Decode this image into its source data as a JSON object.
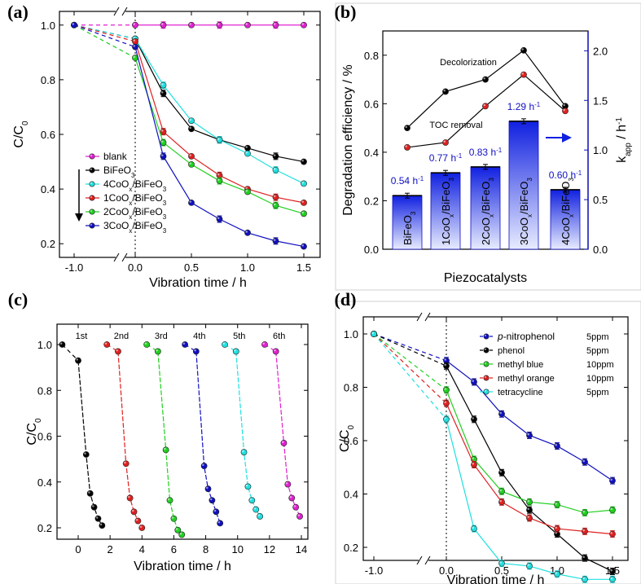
{
  "chart_data": [
    {
      "panel": "(a)",
      "type": "line",
      "xlabel": "Vibration time / h",
      "ylabel": "C/C0",
      "xlim": [
        -1.0,
        1.5
      ],
      "ylim": [
        0.15,
        1.05
      ],
      "xticks": [
        "-1.0",
        "0.0",
        "0.5",
        "1.0",
        "1.5"
      ],
      "yticks": [
        "0.2",
        "0.4",
        "0.6",
        "0.8",
        "1.0"
      ],
      "x": [
        -1.0,
        0.0,
        0.25,
        0.5,
        0.75,
        1.0,
        1.25,
        1.5
      ],
      "series": [
        {
          "name": "blank",
          "color": "#e020d0",
          "values": [
            1.0,
            1.0,
            1.0,
            1.0,
            1.0,
            1.0,
            1.0,
            1.0
          ]
        },
        {
          "name": "BiFeO3",
          "color": "#000000",
          "values": [
            1.0,
            0.95,
            0.75,
            0.62,
            0.58,
            0.55,
            0.52,
            0.5
          ]
        },
        {
          "name": "4CoOx/BiFeO3",
          "color": "#20e0e0",
          "values": [
            1.0,
            0.95,
            0.78,
            0.65,
            0.58,
            0.53,
            0.47,
            0.42
          ]
        },
        {
          "name": "1CoOx/BiFeO3",
          "color": "#e02020",
          "values": [
            1.0,
            0.94,
            0.61,
            0.52,
            0.45,
            0.4,
            0.37,
            0.35
          ]
        },
        {
          "name": "2CoOx/BiFeO3",
          "color": "#20d020",
          "values": [
            1.0,
            0.88,
            0.57,
            0.49,
            0.43,
            0.39,
            0.34,
            0.31
          ]
        },
        {
          "name": "3CoOx/BiFeO3",
          "color": "#1010c0",
          "values": [
            1.0,
            0.92,
            0.52,
            0.35,
            0.29,
            0.24,
            0.21,
            0.19
          ]
        }
      ]
    },
    {
      "panel": "(b)",
      "type": "bar",
      "xlabel": "Piezocatalysts",
      "ylabel": "Degradation efficiency / %",
      "ylabel_right": "k_app / h^-1",
      "categories": [
        "BiFeO3",
        "1CoOx/BiFeO3",
        "2CoOx/BiFeO3",
        "3CoOx/BiFeO3",
        "4CoOx/BiFeO3"
      ],
      "ylim": [
        0.0,
        0.9
      ],
      "yticks": [
        "0.0",
        "0.2",
        "0.4",
        "0.6",
        "0.8"
      ],
      "ylim_right": [
        0.0,
        2.2
      ],
      "yticks_right": [
        "0.0",
        "0.5",
        "1.0",
        "1.5",
        "2.0"
      ],
      "bar_values": [
        0.54,
        0.77,
        0.83,
        1.29,
        0.6
      ],
      "bar_labels": [
        "0.54 h-1",
        "0.77 h-1",
        "0.83 h-1",
        "1.29 h-1",
        "0.60 h-1"
      ],
      "lines": [
        {
          "name": "Decolorization",
          "color": "#000000",
          "values": [
            0.5,
            0.65,
            0.7,
            0.82,
            0.59
          ]
        },
        {
          "name": "TOC removal",
          "color": "#e02020",
          "values": [
            0.42,
            0.44,
            0.59,
            0.72,
            0.57
          ]
        }
      ]
    },
    {
      "panel": "(c)",
      "type": "line",
      "xlabel": "Vibration time / h",
      "ylabel": "C/C0",
      "xlim": [
        -1,
        14
      ],
      "ylim": [
        0.12,
        1.05
      ],
      "xticks": [
        "0",
        "2",
        "4",
        "6",
        "8",
        "10",
        "12",
        "14"
      ],
      "yticks": [
        "0.2",
        "0.4",
        "0.6",
        "0.8",
        "1.0"
      ],
      "series": [
        {
          "name": "1st",
          "color": "#000000",
          "x": [
            -1.0,
            0.0,
            0.5,
            0.75,
            1.0,
            1.25,
            1.5
          ],
          "values": [
            1.0,
            0.93,
            0.52,
            0.35,
            0.29,
            0.24,
            0.21
          ]
        },
        {
          "name": "2nd",
          "color": "#e02020",
          "x": [
            1.8,
            2.5,
            3.0,
            3.25,
            3.5,
            3.75,
            4.0
          ],
          "values": [
            1.0,
            0.97,
            0.48,
            0.33,
            0.27,
            0.23,
            0.2
          ]
        },
        {
          "name": "3rd",
          "color": "#20d020",
          "x": [
            4.3,
            5.0,
            5.5,
            5.75,
            6.0,
            6.25,
            6.5
          ],
          "values": [
            1.0,
            0.97,
            0.54,
            0.32,
            0.24,
            0.19,
            0.17
          ]
        },
        {
          "name": "4th",
          "color": "#1010c0",
          "x": [
            6.7,
            7.4,
            7.9,
            8.15,
            8.4,
            8.65,
            8.9
          ],
          "values": [
            1.0,
            0.97,
            0.47,
            0.37,
            0.32,
            0.27,
            0.22
          ]
        },
        {
          "name": "5th",
          "color": "#20e0e0",
          "x": [
            9.2,
            9.9,
            10.4,
            10.65,
            10.9,
            11.15,
            11.4
          ],
          "values": [
            1.0,
            0.97,
            0.53,
            0.38,
            0.32,
            0.28,
            0.25
          ]
        },
        {
          "name": "6th",
          "color": "#e020d0",
          "x": [
            11.7,
            12.4,
            12.9,
            13.15,
            13.4,
            13.65,
            13.9
          ],
          "values": [
            1.0,
            0.97,
            0.57,
            0.39,
            0.33,
            0.29,
            0.25
          ]
        }
      ],
      "run_labels": [
        "1st",
        "2nd",
        "3rd",
        "4th",
        "5th",
        "6th"
      ]
    },
    {
      "panel": "(d)",
      "type": "line",
      "xlabel": "Vibration time / h",
      "ylabel": "C/C0",
      "xlim": [
        -1.0,
        1.5
      ],
      "ylim": [
        0.05,
        1.05
      ],
      "xticks": [
        "-1.0",
        "0.0",
        "0.5",
        "1.0",
        "1.5"
      ],
      "yticks": [
        "0.2",
        "0.4",
        "0.6",
        "0.8",
        "1.0"
      ],
      "x": [
        -1.0,
        0.0,
        0.25,
        0.5,
        0.75,
        1.0,
        1.25,
        1.5
      ],
      "series": [
        {
          "name": "p-nitrophenol",
          "conc": "5ppm",
          "color": "#1010c0",
          "values": [
            1.0,
            0.9,
            0.82,
            0.7,
            0.62,
            0.58,
            0.52,
            0.45
          ]
        },
        {
          "name": "phenol",
          "conc": "5ppm",
          "color": "#000000",
          "values": [
            1.0,
            0.88,
            0.68,
            0.48,
            0.34,
            0.25,
            0.16,
            0.11
          ]
        },
        {
          "name": "methyl blue",
          "conc": "10ppm",
          "color": "#20d020",
          "values": [
            1.0,
            0.79,
            0.53,
            0.41,
            0.37,
            0.36,
            0.33,
            0.34
          ]
        },
        {
          "name": "methyl orange",
          "conc": "10ppm",
          "color": "#e02020",
          "values": [
            1.0,
            0.74,
            0.51,
            0.37,
            0.31,
            0.27,
            0.26,
            0.25
          ]
        },
        {
          "name": "tetracycline",
          "conc": "5ppm",
          "color": "#20e0e0",
          "values": [
            1.0,
            0.68,
            0.27,
            0.14,
            0.13,
            0.1,
            0.08,
            0.08
          ]
        }
      ]
    }
  ]
}
